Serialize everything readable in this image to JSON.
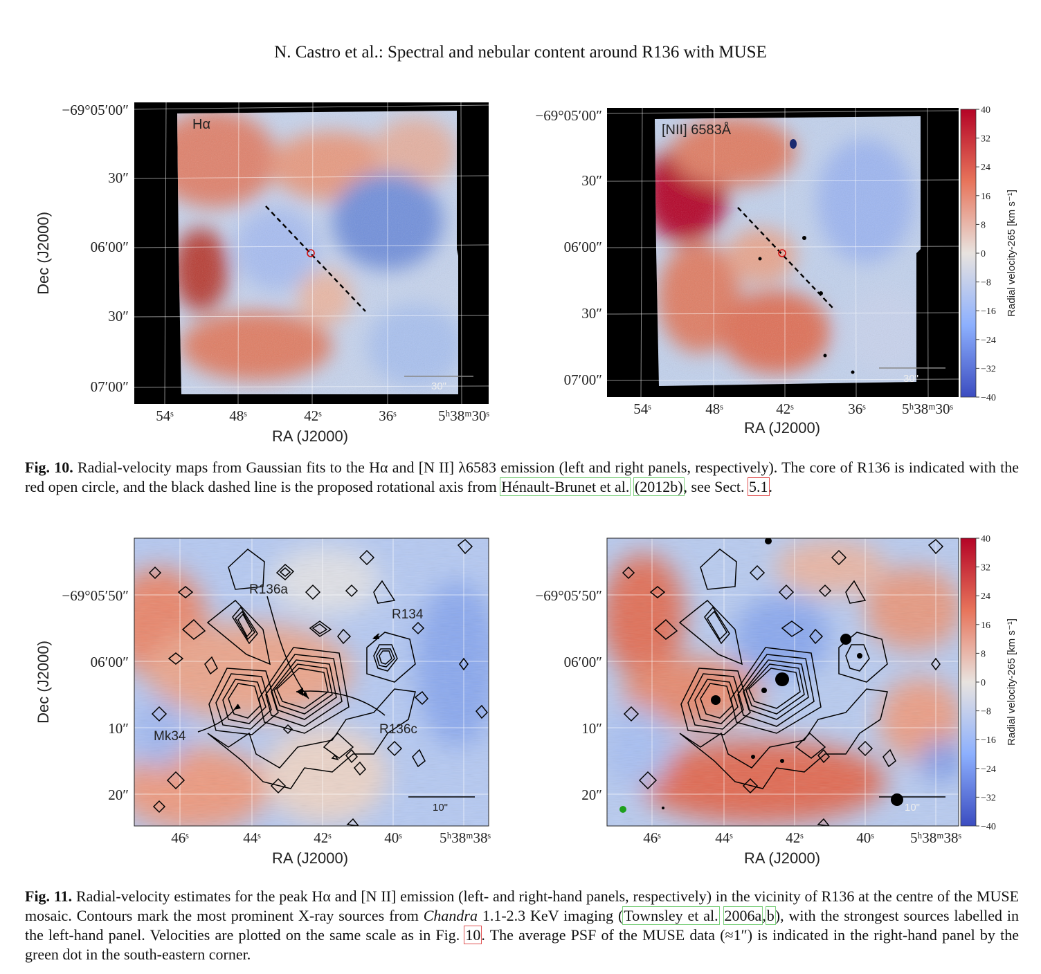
{
  "header": "N. Castro et al.: Spectral and nebular content around R136 with MUSE",
  "fig10": {
    "ylabel": "Dec (J2000)",
    "xlabel": "RA (J2000)",
    "left_yticks": [
      "−69°05′00″",
      "30″",
      "06′00″",
      "30″",
      "07′00″"
    ],
    "right_yticks": [
      "−69°05′00″",
      "30″",
      "06′00″",
      "30″",
      "07′00″"
    ],
    "xticks": [
      "54ˢ",
      "48ˢ",
      "42ˢ",
      "36ˢ",
      "5ʰ38ᵐ30ˢ"
    ],
    "left_label": "Hα",
    "right_label": "[NII] 6583Å",
    "scalebar": "30\"",
    "caption_label": "Fig. 10.",
    "caption_a": " Radial-velocity maps from Gaussian fits to the Hα and [N II] λ6583 emission (left and right panels, respectively). The core of R136 is indicated with the red open circle, and the black dashed line is the proposed rotational axis from ",
    "caption_ref1": "Hénault-Brunet et al.",
    "caption_ref2": "(2012b)",
    "caption_b": ", see Sect. ",
    "caption_ref3": "5.1",
    "caption_c": "."
  },
  "fig11": {
    "ylabel": "Dec (J2000)",
    "xlabel": "RA (J2000)",
    "left_yticks": [
      "−69°05′50″",
      "06′00″",
      "10″",
      "20″"
    ],
    "right_yticks": [
      "−69°05′50″",
      "06′00″",
      "10″",
      "20″"
    ],
    "xticks": [
      "46ˢ",
      "44ˢ",
      "42ˢ",
      "40ˢ",
      "5ʰ38ᵐ38ˢ"
    ],
    "labels": [
      "R136a",
      "R134",
      "Mk34",
      "R136c"
    ],
    "scalebar": "10\"",
    "caption_label": "Fig. 11.",
    "caption_a": " Radial-velocity estimates for the peak Hα and [N II] emission (left- and right-hand panels, respectively) in the vicinity of R136 at the centre of the MUSE mosaic. Contours mark the most prominent X-ray sources from ",
    "caption_chandra": "Chandra",
    "caption_b": " 1.1-2.3 KeV imaging (",
    "caption_ref1": "Townsley et al.",
    "caption_ref2": "2006a",
    "caption_c": ",",
    "caption_ref3": "b",
    "caption_d": "), with the strongest sources labelled in the left-hand panel. Velocities are plotted on the same scale as in Fig. ",
    "caption_ref4": "10",
    "caption_e": ". The average PSF of the MUSE data (≈1″) is indicated in the right-hand panel by the green dot in the south-eastern corner."
  },
  "colorbar": {
    "label": "Radial velocity-265 [km s⁻¹]",
    "ticks": [
      "40",
      "32",
      "24",
      "16",
      "8",
      "0",
      "−8",
      "−16",
      "−24",
      "−32",
      "−40"
    ],
    "colors": {
      "high": "#b40426",
      "mid": "#e8e3df",
      "low": "#3b4cc0"
    }
  }
}
